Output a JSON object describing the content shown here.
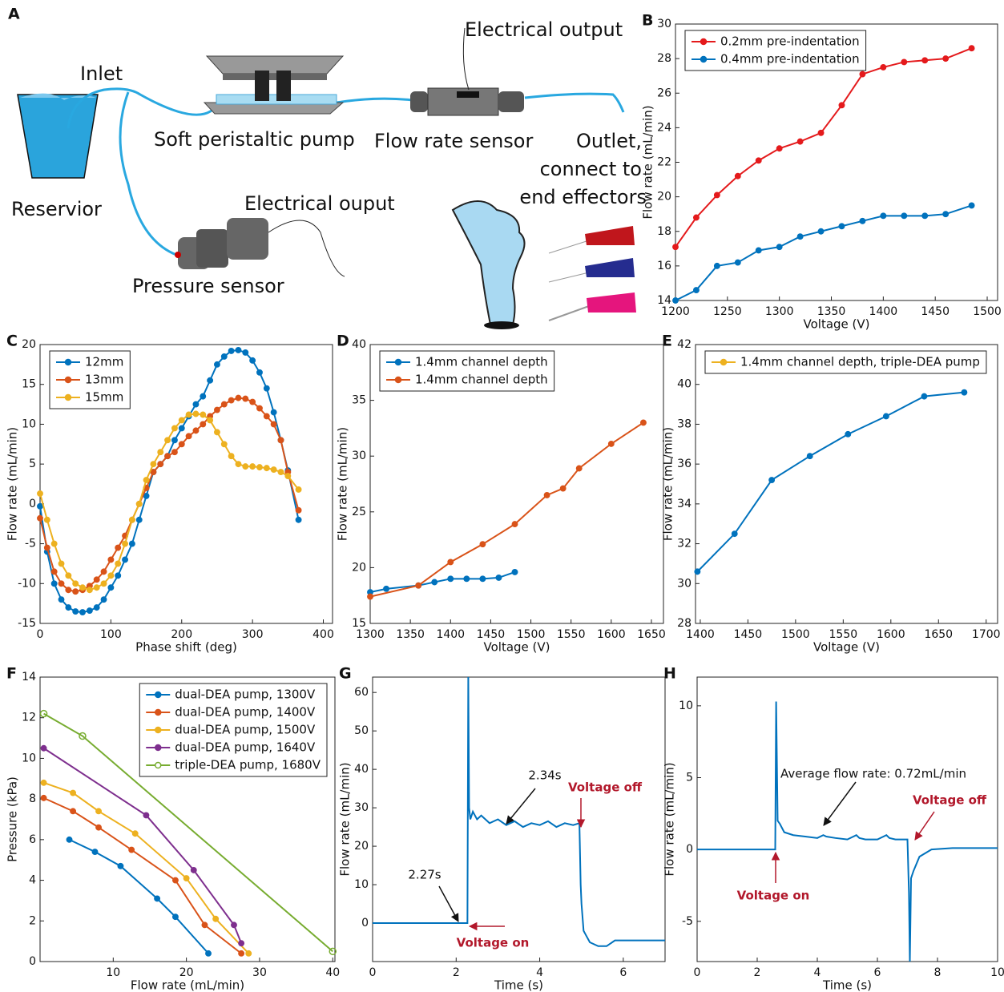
{
  "diagram": {
    "label": "A",
    "labels": [
      "Inlet",
      "Electrical output",
      "Soft peristaltic pump",
      "Flow rate sensor",
      "Outlet,",
      "connect to",
      "end effectors",
      "Reservior",
      "Electrical ouput",
      "Pressure sensor"
    ]
  },
  "chart_data": [
    {
      "type": "line",
      "label": "B",
      "xlabel": "Voltage (V)",
      "ylabel": "Flow rate (mL/min)",
      "xlim": [
        1200,
        1510
      ],
      "ylim": [
        14,
        30
      ],
      "xticks": [
        1200,
        1250,
        1300,
        1350,
        1400,
        1450,
        1500
      ],
      "yticks": [
        14,
        16,
        18,
        20,
        22,
        24,
        26,
        28,
        30
      ],
      "legend": "upper left",
      "series": [
        {
          "name": "0.2mm pre-indentation",
          "color": "#e41a1c",
          "x": [
            1200,
            1220,
            1240,
            1260,
            1280,
            1300,
            1320,
            1340,
            1360,
            1380,
            1400,
            1420,
            1440,
            1460,
            1485
          ],
          "values": [
            17.1,
            18.8,
            20.1,
            21.2,
            22.1,
            22.8,
            23.2,
            23.7,
            25.3,
            27.1,
            27.5,
            27.8,
            27.9,
            28.0,
            28.6
          ]
        },
        {
          "name": "0.4mm pre-indentation",
          "color": "#0072bd",
          "x": [
            1200,
            1220,
            1240,
            1260,
            1280,
            1300,
            1320,
            1340,
            1360,
            1380,
            1400,
            1420,
            1440,
            1460,
            1485
          ],
          "values": [
            14.0,
            14.6,
            16.0,
            16.2,
            16.9,
            17.1,
            17.7,
            18.0,
            18.3,
            18.6,
            18.9,
            18.9,
            18.9,
            19.0,
            19.5
          ]
        }
      ]
    },
    {
      "type": "line",
      "label": "C",
      "xlabel": "Phase shift (deg)",
      "ylabel": "Flow rate (mL/min)",
      "xlim": [
        0,
        413
      ],
      "ylim": [
        -15,
        20
      ],
      "xticks": [
        0,
        100,
        200,
        300,
        400
      ],
      "yticks": [
        -15,
        -10,
        -5,
        0,
        5,
        10,
        15,
        20
      ],
      "legend": "upper left",
      "series": [
        {
          "name": "12mm",
          "color": "#0072bd",
          "x": [
            0,
            10,
            20,
            30,
            40,
            50,
            60,
            70,
            80,
            90,
            100,
            110,
            120,
            130,
            140,
            150,
            160,
            170,
            180,
            190,
            200,
            210,
            220,
            230,
            240,
            250,
            260,
            270,
            280,
            290,
            300,
            310,
            320,
            330,
            340,
            350,
            365
          ],
          "values": [
            -0.3,
            -6,
            -10,
            -12,
            -13,
            -13.5,
            -13.6,
            -13.4,
            -13,
            -12,
            -10.5,
            -9,
            -7,
            -5,
            -2,
            1,
            4,
            5,
            6,
            8,
            9.5,
            11,
            12.5,
            13.5,
            15.5,
            17.5,
            18.5,
            19.2,
            19.3,
            19,
            18,
            16.5,
            14.5,
            11.5,
            8,
            4.2,
            -2
          ]
        },
        {
          "name": "13mm",
          "color": "#d95319",
          "x": [
            0,
            10,
            20,
            30,
            40,
            50,
            60,
            70,
            80,
            90,
            100,
            110,
            120,
            130,
            140,
            150,
            160,
            170,
            180,
            190,
            200,
            210,
            220,
            230,
            240,
            250,
            260,
            270,
            280,
            290,
            300,
            310,
            320,
            330,
            340,
            350,
            365
          ],
          "values": [
            -1.8,
            -5.5,
            -8.5,
            -10,
            -10.8,
            -11,
            -10.8,
            -10.3,
            -9.5,
            -8.5,
            -7,
            -5.5,
            -4,
            -2,
            0,
            2,
            4,
            5,
            6,
            6.5,
            7.5,
            8.5,
            9.2,
            10,
            11,
            11.8,
            12.5,
            13,
            13.3,
            13.2,
            12.8,
            12,
            11,
            10,
            8,
            4,
            -0.8
          ]
        },
        {
          "name": "15mm",
          "color": "#edb120",
          "x": [
            0,
            10,
            20,
            30,
            40,
            50,
            60,
            70,
            80,
            90,
            100,
            110,
            120,
            130,
            140,
            150,
            160,
            170,
            180,
            190,
            200,
            210,
            220,
            230,
            240,
            250,
            260,
            270,
            280,
            290,
            300,
            310,
            320,
            330,
            340,
            350,
            365
          ],
          "values": [
            1.3,
            -2,
            -5,
            -7.5,
            -9,
            -10,
            -10.5,
            -10.8,
            -10.5,
            -10,
            -9,
            -7.5,
            -5,
            -2,
            0,
            3,
            5,
            6.5,
            8,
            9.5,
            10.5,
            11.2,
            11.3,
            11.2,
            10.5,
            9,
            7.5,
            6,
            5,
            4.7,
            4.7,
            4.6,
            4.5,
            4.3,
            4,
            3.5,
            1.8
          ]
        }
      ]
    },
    {
      "type": "line",
      "label": "D",
      "xlabel": "Voltage (V)",
      "ylabel": "Flow rate (mL/min)",
      "xlim": [
        1300,
        1665
      ],
      "ylim": [
        15,
        40
      ],
      "xticks": [
        1300,
        1350,
        1400,
        1450,
        1500,
        1550,
        1600,
        1650
      ],
      "yticks": [
        15,
        20,
        25,
        30,
        35,
        40
      ],
      "legend": "upper left",
      "series": [
        {
          "name": "1.4mm channel depth",
          "color": "#0072bd",
          "x": [
            1300,
            1320,
            1360,
            1380,
            1400,
            1420,
            1440,
            1460,
            1480
          ],
          "values": [
            17.8,
            18.1,
            18.4,
            18.7,
            19.0,
            19.0,
            19.0,
            19.1,
            19.6
          ]
        },
        {
          "name": "1.4mm channel depth",
          "color": "#d95319",
          "x": [
            1300,
            1360,
            1400,
            1440,
            1480,
            1520,
            1540,
            1560,
            1600,
            1640
          ],
          "values": [
            17.4,
            18.4,
            20.5,
            22.1,
            23.9,
            26.5,
            27.1,
            28.9,
            31.1,
            33.0
          ]
        }
      ]
    },
    {
      "type": "line",
      "label": "E",
      "xlabel": "Voltage (V)",
      "ylabel": "Flow rate (mL/min)",
      "xlim": [
        1395,
        1712
      ],
      "ylim": [
        28,
        42
      ],
      "xticks": [
        1400,
        1450,
        1500,
        1550,
        1600,
        1650,
        1700
      ],
      "yticks": [
        28,
        30,
        32,
        34,
        36,
        38,
        40,
        42
      ],
      "legend": "upper left",
      "series": [
        {
          "name": "1.4mm channel depth, triple-DEA pump",
          "color": "#0072bd",
          "legend_color": "#edb120",
          "x": [
            1397,
            1436,
            1475,
            1515,
            1555,
            1595,
            1635,
            1677
          ],
          "values": [
            30.6,
            32.5,
            35.2,
            36.4,
            37.5,
            38.4,
            39.4,
            39.6
          ]
        }
      ]
    },
    {
      "type": "line",
      "label": "F",
      "xlabel": "Flow rate (mL/min)",
      "ylabel": "Pressure (kPa)",
      "xlim": [
        0,
        40.3
      ],
      "ylim": [
        0,
        14
      ],
      "xticks": [
        10,
        20,
        30,
        40
      ],
      "yticks": [
        0,
        2,
        4,
        6,
        8,
        10,
        12,
        14
      ],
      "legend": "upper right",
      "series": [
        {
          "name": "dual-DEA pump, 1300V",
          "color": "#0072bd",
          "x": [
            4,
            7.5,
            11,
            16,
            18.5,
            23
          ],
          "values": [
            6,
            5.4,
            4.7,
            3.1,
            2.2,
            0.4
          ]
        },
        {
          "name": " dual-DEA pump, 1400V",
          "color": "#d95319",
          "x": [
            0.5,
            4.5,
            8,
            12.5,
            18.5,
            22.5,
            27.5
          ],
          "values": [
            8.05,
            7.4,
            6.6,
            5.5,
            4,
            1.8,
            0.4
          ]
        },
        {
          "name": "dual-DEA pump, 1500V",
          "color": "#edb120",
          "x": [
            0.5,
            4.5,
            8,
            13,
            20,
            24,
            28.5
          ],
          "values": [
            8.8,
            8.3,
            7.4,
            6.3,
            4.1,
            2.1,
            0.4
          ]
        },
        {
          "name": "dual-DEA pump, 1640V",
          "color": "#7e2f8e",
          "x": [
            0.5,
            14.5,
            21,
            26.5,
            27.5
          ],
          "values": [
            10.5,
            7.2,
            4.5,
            1.8,
            0.9
          ]
        },
        {
          "name": "triple-DEA pump, 1680V",
          "color": "#77ac30",
          "marker": "open",
          "x": [
            0.5,
            5.8,
            40
          ],
          "values": [
            12.2,
            11.1,
            0.5
          ]
        }
      ]
    },
    {
      "type": "line",
      "label": "G",
      "xlabel": "Time (s)",
      "ylabel": "Flow rate (mL/min)",
      "xlim": [
        0,
        7
      ],
      "ylim": [
        -10,
        64
      ],
      "xticks": [
        0,
        2,
        4,
        6
      ],
      "yticks": [
        0,
        10,
        20,
        30,
        40,
        50,
        60
      ],
      "annotations": [
        {
          "text": "2.27s"
        },
        {
          "text": "2.34s"
        },
        {
          "text": "Voltage off",
          "color": "#b2182b"
        },
        {
          "text": "Voltage on",
          "color": "#b2182b"
        }
      ],
      "series": [
        {
          "color": "#0072bd",
          "markers": false,
          "x": [
            0,
            2.27,
            2.29,
            2.31,
            2.34,
            2.4,
            2.5,
            2.6,
            2.8,
            3.0,
            3.2,
            3.4,
            3.6,
            3.8,
            4.0,
            4.2,
            4.4,
            4.6,
            4.8,
            4.95,
            4.98,
            5.0,
            5.05,
            5.1,
            5.2,
            5.4,
            5.6,
            5.8,
            6.0,
            7.0
          ],
          "values": [
            0,
            0,
            64,
            30,
            27,
            29,
            27,
            28,
            26,
            27,
            25.5,
            26.5,
            25,
            26,
            25.5,
            26.5,
            25,
            26,
            25.5,
            26,
            10,
            5,
            -2,
            -3,
            -5,
            -6,
            -6,
            -4.5,
            -4.5,
            -4.5
          ]
        }
      ]
    },
    {
      "type": "line",
      "label": "H",
      "xlabel": "Time (s)",
      "ylabel": "Flow rate (mL/min)",
      "xlim": [
        0,
        10
      ],
      "ylim": [
        -7.8,
        12
      ],
      "xticks": [
        0,
        2,
        4,
        6,
        8,
        10
      ],
      "yticks": [
        -5,
        0,
        5,
        10
      ],
      "annotations": [
        {
          "text": "Average flow rate: 0.72mL/min"
        },
        {
          "text": "Voltage off",
          "color": "#b2182b"
        },
        {
          "text": "Voltage on",
          "color": "#b2182b"
        }
      ],
      "series": [
        {
          "color": "#0072bd",
          "markers": false,
          "x": [
            0,
            2.6,
            2.63,
            2.68,
            2.75,
            2.9,
            3.2,
            3.6,
            4.0,
            4.2,
            4.3,
            4.6,
            5.0,
            5.3,
            5.4,
            5.6,
            6.0,
            6.3,
            6.4,
            6.6,
            7.0,
            7.05,
            7.08,
            7.12,
            7.2,
            7.4,
            7.8,
            8.5,
            10
          ],
          "values": [
            0,
            0,
            10.3,
            2,
            1.8,
            1.2,
            1,
            0.9,
            0.8,
            1,
            0.9,
            0.8,
            0.7,
            1,
            0.8,
            0.7,
            0.7,
            1,
            0.8,
            0.7,
            0.7,
            -3,
            -7.8,
            -2,
            -1.5,
            -0.5,
            0,
            0.1,
            0.1
          ]
        }
      ]
    }
  ]
}
